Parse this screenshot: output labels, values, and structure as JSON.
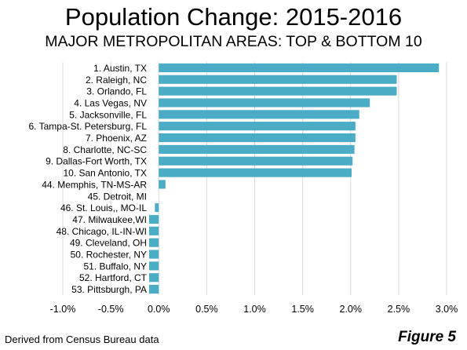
{
  "chart_data": {
    "type": "bar",
    "orientation": "horizontal",
    "title": "Population Change: 2015-2016",
    "subtitle": "MAJOR METROPOLITAN AREAS: TOP & BOTTOM 10",
    "categories": [
      "1. Austin, TX",
      "2. Raleigh, NC",
      "3. Orlando, FL",
      "4. Las Vegas, NV",
      "5. Jacksonville, FL",
      "6. Tampa-St. Petersburg, FL",
      "7. Phoenix, AZ",
      "8. Charlotte, NC-SC",
      "9. Dallas-Fort Worth, TX",
      "10. San Antonio, TX",
      "44. Memphis, TN-MS-AR",
      "45. Detroit,  MI",
      "46. St. Louis,, MO-IL",
      "47. Milwaukee,WI",
      "48. Chicago, IL-IN-WI",
      "49. Cleveland, OH",
      "50. Rochester, NY",
      "51. Buffalo, NY",
      "52. Hartford, CT",
      "53. Pittsburgh, PA"
    ],
    "values": [
      2.92,
      2.48,
      2.48,
      2.2,
      2.09,
      2.05,
      2.05,
      2.04,
      2.02,
      2.01,
      0.07,
      0.0,
      -0.04,
      -0.1,
      -0.1,
      -0.1,
      -0.1,
      -0.1,
      -0.1,
      -0.1
    ],
    "xlim": [
      -1.0,
      3.0
    ],
    "x_ticks": [
      "-1.0%",
      "-0.5%",
      "0.0%",
      "0.5%",
      "1.0%",
      "1.5%",
      "2.0%",
      "2.5%",
      "3.0%"
    ],
    "x_tick_values": [
      -1.0,
      -0.5,
      0.0,
      0.5,
      1.0,
      1.5,
      2.0,
      2.5,
      3.0
    ],
    "xlabel": "",
    "ylabel": "",
    "grid": "vertical",
    "bar_color": "#4bacc6",
    "grid_color": "#d9d9d9"
  },
  "footer": {
    "source": "Derived from Census Bureau data",
    "figure_label": "Figure 5"
  }
}
